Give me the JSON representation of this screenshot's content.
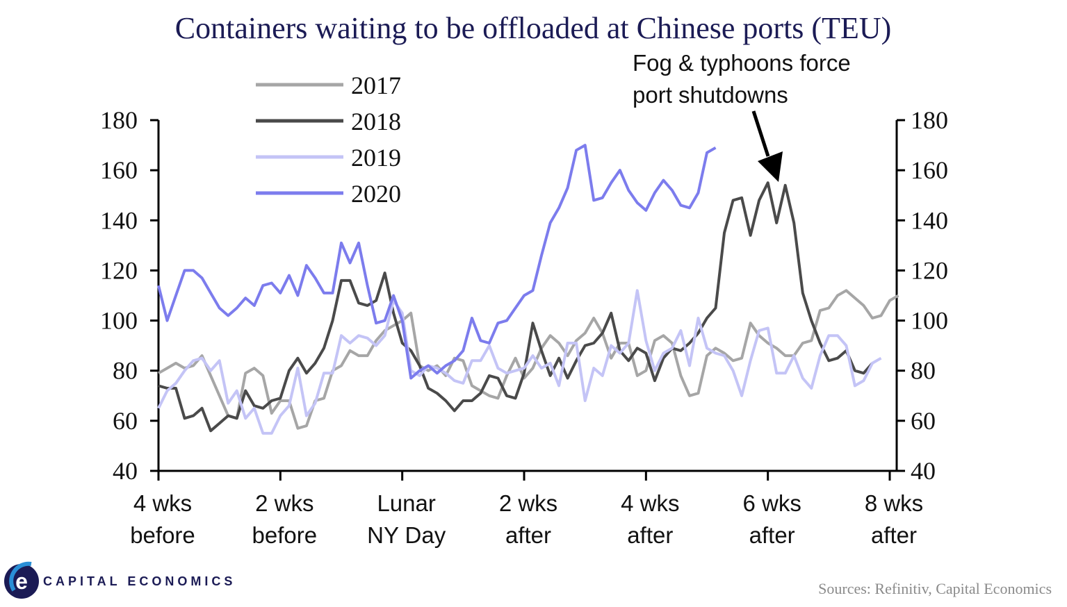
{
  "chart_data": {
    "type": "line",
    "title": "Containers waiting to be offloaded at Chinese ports (TEU)",
    "ylim": [
      40,
      180
    ],
    "y_ticks": [
      "40",
      "60",
      "80",
      "100",
      "120",
      "140",
      "160",
      "180"
    ],
    "x_range": [
      0,
      60
    ],
    "x_ticks": [
      {
        "x": 0,
        "lines": [
          "4 wks",
          "before"
        ]
      },
      {
        "x": 10,
        "lines": [
          "2 wks",
          "before"
        ]
      },
      {
        "x": 20,
        "lines": [
          "Lunar",
          "NY Day"
        ]
      },
      {
        "x": 30,
        "lines": [
          "2 wks",
          "after"
        ]
      },
      {
        "x": 40,
        "lines": [
          "4 wks",
          "after"
        ]
      },
      {
        "x": 50,
        "lines": [
          "6 wks",
          "after"
        ]
      },
      {
        "x": 60,
        "lines": [
          "8 wks",
          "after"
        ]
      }
    ],
    "series": [
      {
        "name": "2017",
        "color": "#a6a6a6",
        "values": [
          79,
          81,
          83,
          81,
          82,
          86,
          78,
          70,
          62,
          61,
          79,
          81,
          78,
          63,
          68,
          68,
          57,
          58,
          68,
          69,
          80,
          82,
          88,
          86,
          86,
          92,
          96,
          98,
          100,
          103,
          82,
          80,
          82,
          78,
          85,
          84,
          74,
          72,
          70,
          69,
          78,
          85,
          77,
          81,
          89,
          94,
          91,
          86,
          92,
          95,
          101,
          95,
          85,
          91,
          91,
          78,
          80,
          92,
          94,
          91,
          78,
          70,
          71,
          86,
          89,
          87,
          84,
          85,
          99,
          94,
          91,
          89,
          86,
          86,
          91,
          92,
          104,
          105,
          110,
          112,
          109,
          106,
          101,
          102,
          108,
          110
        ]
      },
      {
        "name": "2018",
        "color": "#4a4a4a",
        "values": [
          74,
          73,
          73,
          61,
          62,
          65,
          56,
          59,
          62,
          61,
          72,
          66,
          65,
          68,
          69,
          80,
          85,
          79,
          83,
          89,
          100,
          116,
          116,
          107,
          106,
          108,
          119,
          103,
          91,
          88,
          82,
          73,
          71,
          68,
          64,
          68,
          68,
          71,
          78,
          77,
          70,
          69,
          79,
          99,
          88,
          78,
          85,
          77,
          84,
          90,
          91,
          95,
          103,
          88,
          84,
          89,
          87,
          76,
          85,
          89,
          88,
          91,
          95,
          101,
          105,
          135,
          148,
          149,
          134,
          148,
          155,
          139,
          154,
          139,
          111,
          100,
          91,
          84,
          85,
          88,
          80,
          79,
          83
        ]
      },
      {
        "name": "2019",
        "color": "#c4c4f6",
        "values": [
          65,
          72,
          75,
          80,
          84,
          85,
          80,
          84,
          67,
          72,
          61,
          65,
          55,
          55,
          62,
          66,
          81,
          62,
          67,
          79,
          79,
          94,
          91,
          94,
          93,
          90,
          94,
          108,
          103,
          80,
          78,
          82,
          81,
          79,
          76,
          75,
          84,
          84,
          90,
          81,
          79,
          80,
          81,
          86,
          81,
          83,
          74,
          91,
          91,
          68,
          81,
          78,
          90,
          87,
          91,
          112,
          92,
          80,
          87,
          89,
          96,
          82,
          101,
          89,
          87,
          86,
          80,
          70,
          84,
          96,
          97,
          79,
          79,
          86,
          77,
          73,
          86,
          94,
          94,
          90,
          74,
          76,
          83,
          85
        ]
      },
      {
        "name": "2020",
        "color": "#7c7ced",
        "values": [
          114,
          100,
          110,
          120,
          120,
          117,
          111,
          105,
          102,
          105,
          109,
          106,
          114,
          115,
          111,
          118,
          110,
          122,
          117,
          111,
          111,
          131,
          123,
          131,
          114,
          99,
          100,
          110,
          100,
          77,
          80,
          82,
          79,
          82,
          84,
          88,
          101,
          92,
          91,
          99,
          100,
          105,
          110,
          112,
          126,
          139,
          145,
          153,
          168,
          170,
          148,
          149,
          155,
          160,
          152,
          147,
          144,
          151,
          156,
          152,
          146,
          145,
          151,
          167,
          169
        ]
      }
    ],
    "legend": [
      "2017",
      "2018",
      "2019",
      "2020"
    ],
    "annotation": {
      "lines": [
        "Fog & typhoons force",
        "port shutdowns"
      ]
    },
    "source": "Sources: Refinitiv, Capital Economics"
  },
  "brand": {
    "logo_letter": "e",
    "name": "CAPITAL ECONOMICS"
  }
}
